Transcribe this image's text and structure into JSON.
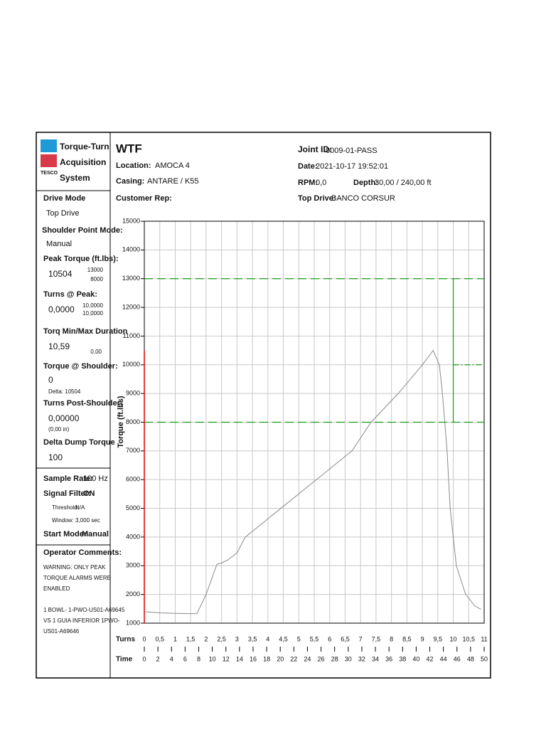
{
  "logo": {
    "line1": "Torque-Turn",
    "line2": "Acquisition",
    "line3": "System",
    "brand": "TESCO"
  },
  "header": {
    "title": "WTF",
    "location": {
      "label": "Location:",
      "value": "AMOCA 4"
    },
    "casing": {
      "label": "Casing:",
      "value": "ANTARE / K55"
    },
    "customer_rep": {
      "label": "Customer Rep:"
    },
    "joint_id": {
      "label": "Joint ID:",
      "value": "0009-01-PASS"
    },
    "date": {
      "label": "Date:",
      "value": "2021-10-17 19:52:01"
    },
    "rpm": {
      "label": "RPM:",
      "value": "0,0"
    },
    "depth": {
      "label": "Depth:",
      "value": "30,00 / 240,00 ft"
    },
    "top_drive": {
      "label": "Top Drive:",
      "value": "BANCO CORSUR"
    }
  },
  "sidebar": {
    "drive_mode": {
      "label": "Drive Mode",
      "value": "Top Drive"
    },
    "shoulder_point_mode": {
      "label": "Shoulder Point Mode:",
      "value": "Manual"
    },
    "peak_torque": {
      "label": "Peak Torque (ft.lbs):",
      "value": "10504",
      "max": "13000",
      "min": "8000"
    },
    "turns_at_peak": {
      "label": "Turns @ Peak:",
      "value": "0,0000",
      "max": "10,0000",
      "min": "10,0000"
    },
    "duration": {
      "label": "Torq Min/Max Duration",
      "value": "10,59",
      "extra": "0,00"
    },
    "torque_at_shoulder": {
      "label": "Torque @ Shoulder:",
      "value": "0",
      "delta": "Delta: 10504"
    },
    "turns_post_shoulder": {
      "label": "Turns Post-Shoulder:",
      "value": "0,00000",
      "inches": "(0,00 in)"
    },
    "delta_dump": {
      "label": "Delta Dump Torque",
      "value": "100"
    },
    "sample_rate": {
      "label": "Sample Rate:",
      "value": "100 Hz"
    },
    "signal_filter": {
      "label": "Signal Filter:",
      "value": "ON"
    },
    "threshold": {
      "label": "Threshold:",
      "value": "N/A"
    },
    "window": {
      "label": "Window:",
      "value": "3,000 sec"
    },
    "start_mode": {
      "label": "Start Mode:",
      "value": "Manual"
    },
    "comments": {
      "label": "Operator Comments:",
      "lines": [
        "WARNING: ONLY PEAK",
        "TORQUE ALARMS WERE",
        "ENABLED",
        "1 BOWL- 1-PWO-US01-A69645",
        "VS 1 GUIA INFERIOR 1PWO-",
        "US01-A69646"
      ]
    }
  },
  "chart_data": {
    "type": "line",
    "y_label": "Torque (ft.lbs)",
    "x_label": "Turns",
    "x2_label": "Time",
    "xlim": [
      0,
      11
    ],
    "xticks": [
      0,
      {
        "value": 0.5,
        "label": "0,5"
      },
      1,
      {
        "value": 1.5,
        "label": "1,5"
      },
      2,
      {
        "value": 2.5,
        "label": "2,5"
      },
      3,
      {
        "value": 3.5,
        "label": "3,5"
      },
      4,
      {
        "value": 4.5,
        "label": "4,5"
      },
      5,
      {
        "value": 5.5,
        "label": "5,5"
      },
      6,
      {
        "value": 6.5,
        "label": "6,5"
      },
      7,
      {
        "value": 7.5,
        "label": "7,5"
      },
      8,
      {
        "value": 8.5,
        "label": "8,5"
      },
      9,
      {
        "value": 9.5,
        "label": "9,5"
      },
      10,
      {
        "value": 10.5,
        "label": "10,5"
      },
      11
    ],
    "x2lim": [
      0,
      50
    ],
    "x2ticks": [
      0,
      2,
      4,
      6,
      8,
      10,
      12,
      14,
      16,
      18,
      20,
      22,
      24,
      26,
      28,
      30,
      32,
      34,
      36,
      38,
      40,
      42,
      44,
      46,
      48,
      50
    ],
    "ylim": [
      1000,
      15000
    ],
    "yticks": [
      1000,
      2000,
      3000,
      4000,
      5000,
      6000,
      7000,
      8000,
      9000,
      10000,
      11000,
      12000,
      13000,
      14000,
      15000
    ],
    "grid": true,
    "x": [
      0,
      0.5,
      1,
      1.5,
      1.7,
      2,
      2.35,
      2.5,
      2.7,
      3,
      3.27,
      4.42,
      5.57,
      6.72,
      7.34,
      8.22,
      9.0,
      9.35,
      9.55,
      9.65,
      9.8,
      9.9,
      10.1,
      10.4,
      10.7,
      10.9
    ],
    "series": [
      {
        "color": "#8a8a8a",
        "values": [
          1400,
          1360,
          1340,
          1330,
          1330,
          2000,
          3050,
          3100,
          3200,
          3450,
          4000,
          5000,
          6000,
          7000,
          8000,
          9000,
          10000,
          10500,
          10000,
          9000,
          7000,
          5000,
          3000,
          2000,
          1600,
          1480
        ]
      }
    ],
    "peak_marker": {
      "x": 0,
      "value": 10500,
      "color": "#e00000"
    },
    "limits": {
      "upper": 13000,
      "lower": 8000,
      "max_turns": 10,
      "target": 10000,
      "color": "#1a9c1a"
    },
    "turns_color": "#cc0000"
  }
}
